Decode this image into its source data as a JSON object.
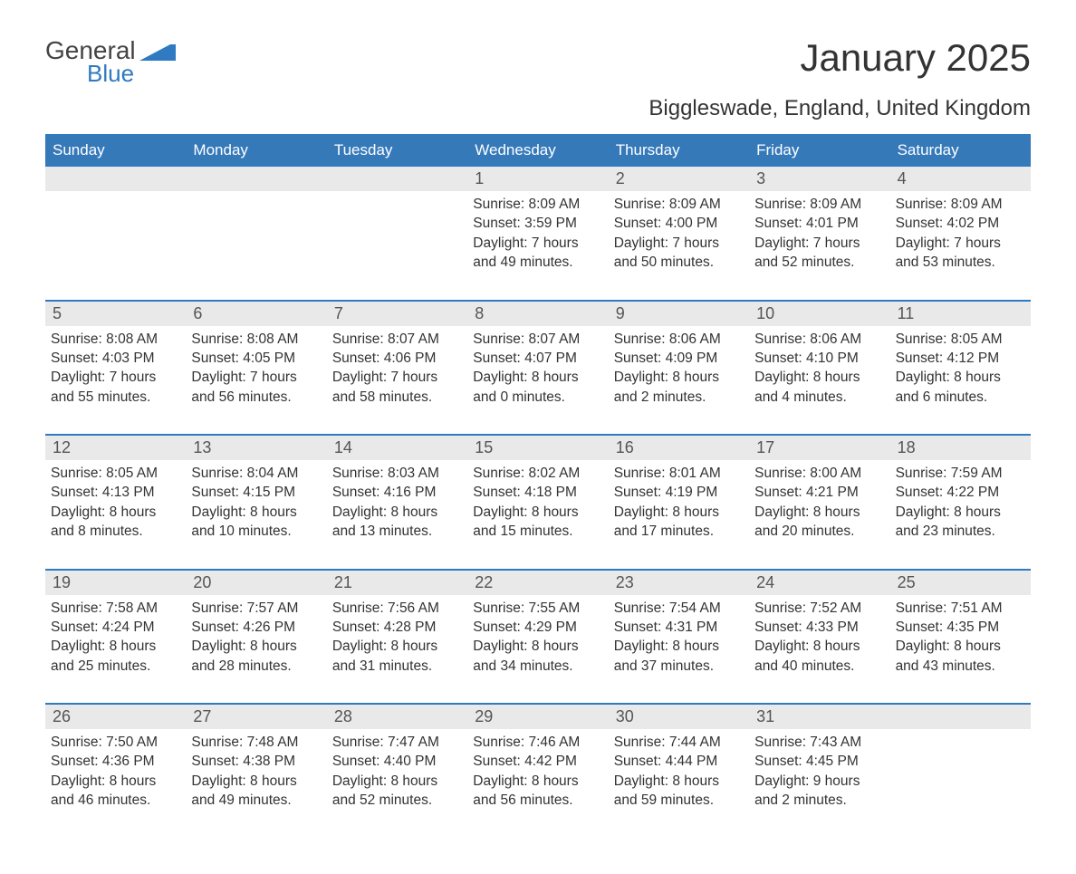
{
  "brand": {
    "word1": "General",
    "word2": "Blue"
  },
  "title": "January 2025",
  "location": "Biggleswade, England, United Kingdom",
  "colors": {
    "accent": "#2f7ac0",
    "header_bg": "#3579b9",
    "dayhead_bg": "#e9e9e9"
  },
  "weekdays": [
    "Sunday",
    "Monday",
    "Tuesday",
    "Wednesday",
    "Thursday",
    "Friday",
    "Saturday"
  ],
  "weeks": [
    [
      {
        "n": "",
        "sunrise": "",
        "sunset": "",
        "daylight": ""
      },
      {
        "n": "",
        "sunrise": "",
        "sunset": "",
        "daylight": ""
      },
      {
        "n": "",
        "sunrise": "",
        "sunset": "",
        "daylight": ""
      },
      {
        "n": "1",
        "sunrise": "Sunrise: 8:09 AM",
        "sunset": "Sunset: 3:59 PM",
        "daylight": "Daylight: 7 hours and 49 minutes."
      },
      {
        "n": "2",
        "sunrise": "Sunrise: 8:09 AM",
        "sunset": "Sunset: 4:00 PM",
        "daylight": "Daylight: 7 hours and 50 minutes."
      },
      {
        "n": "3",
        "sunrise": "Sunrise: 8:09 AM",
        "sunset": "Sunset: 4:01 PM",
        "daylight": "Daylight: 7 hours and 52 minutes."
      },
      {
        "n": "4",
        "sunrise": "Sunrise: 8:09 AM",
        "sunset": "Sunset: 4:02 PM",
        "daylight": "Daylight: 7 hours and 53 minutes."
      }
    ],
    [
      {
        "n": "5",
        "sunrise": "Sunrise: 8:08 AM",
        "sunset": "Sunset: 4:03 PM",
        "daylight": "Daylight: 7 hours and 55 minutes."
      },
      {
        "n": "6",
        "sunrise": "Sunrise: 8:08 AM",
        "sunset": "Sunset: 4:05 PM",
        "daylight": "Daylight: 7 hours and 56 minutes."
      },
      {
        "n": "7",
        "sunrise": "Sunrise: 8:07 AM",
        "sunset": "Sunset: 4:06 PM",
        "daylight": "Daylight: 7 hours and 58 minutes."
      },
      {
        "n": "8",
        "sunrise": "Sunrise: 8:07 AM",
        "sunset": "Sunset: 4:07 PM",
        "daylight": "Daylight: 8 hours and 0 minutes."
      },
      {
        "n": "9",
        "sunrise": "Sunrise: 8:06 AM",
        "sunset": "Sunset: 4:09 PM",
        "daylight": "Daylight: 8 hours and 2 minutes."
      },
      {
        "n": "10",
        "sunrise": "Sunrise: 8:06 AM",
        "sunset": "Sunset: 4:10 PM",
        "daylight": "Daylight: 8 hours and 4 minutes."
      },
      {
        "n": "11",
        "sunrise": "Sunrise: 8:05 AM",
        "sunset": "Sunset: 4:12 PM",
        "daylight": "Daylight: 8 hours and 6 minutes."
      }
    ],
    [
      {
        "n": "12",
        "sunrise": "Sunrise: 8:05 AM",
        "sunset": "Sunset: 4:13 PM",
        "daylight": "Daylight: 8 hours and 8 minutes."
      },
      {
        "n": "13",
        "sunrise": "Sunrise: 8:04 AM",
        "sunset": "Sunset: 4:15 PM",
        "daylight": "Daylight: 8 hours and 10 minutes."
      },
      {
        "n": "14",
        "sunrise": "Sunrise: 8:03 AM",
        "sunset": "Sunset: 4:16 PM",
        "daylight": "Daylight: 8 hours and 13 minutes."
      },
      {
        "n": "15",
        "sunrise": "Sunrise: 8:02 AM",
        "sunset": "Sunset: 4:18 PM",
        "daylight": "Daylight: 8 hours and 15 minutes."
      },
      {
        "n": "16",
        "sunrise": "Sunrise: 8:01 AM",
        "sunset": "Sunset: 4:19 PM",
        "daylight": "Daylight: 8 hours and 17 minutes."
      },
      {
        "n": "17",
        "sunrise": "Sunrise: 8:00 AM",
        "sunset": "Sunset: 4:21 PM",
        "daylight": "Daylight: 8 hours and 20 minutes."
      },
      {
        "n": "18",
        "sunrise": "Sunrise: 7:59 AM",
        "sunset": "Sunset: 4:22 PM",
        "daylight": "Daylight: 8 hours and 23 minutes."
      }
    ],
    [
      {
        "n": "19",
        "sunrise": "Sunrise: 7:58 AM",
        "sunset": "Sunset: 4:24 PM",
        "daylight": "Daylight: 8 hours and 25 minutes."
      },
      {
        "n": "20",
        "sunrise": "Sunrise: 7:57 AM",
        "sunset": "Sunset: 4:26 PM",
        "daylight": "Daylight: 8 hours and 28 minutes."
      },
      {
        "n": "21",
        "sunrise": "Sunrise: 7:56 AM",
        "sunset": "Sunset: 4:28 PM",
        "daylight": "Daylight: 8 hours and 31 minutes."
      },
      {
        "n": "22",
        "sunrise": "Sunrise: 7:55 AM",
        "sunset": "Sunset: 4:29 PM",
        "daylight": "Daylight: 8 hours and 34 minutes."
      },
      {
        "n": "23",
        "sunrise": "Sunrise: 7:54 AM",
        "sunset": "Sunset: 4:31 PM",
        "daylight": "Daylight: 8 hours and 37 minutes."
      },
      {
        "n": "24",
        "sunrise": "Sunrise: 7:52 AM",
        "sunset": "Sunset: 4:33 PM",
        "daylight": "Daylight: 8 hours and 40 minutes."
      },
      {
        "n": "25",
        "sunrise": "Sunrise: 7:51 AM",
        "sunset": "Sunset: 4:35 PM",
        "daylight": "Daylight: 8 hours and 43 minutes."
      }
    ],
    [
      {
        "n": "26",
        "sunrise": "Sunrise: 7:50 AM",
        "sunset": "Sunset: 4:36 PM",
        "daylight": "Daylight: 8 hours and 46 minutes."
      },
      {
        "n": "27",
        "sunrise": "Sunrise: 7:48 AM",
        "sunset": "Sunset: 4:38 PM",
        "daylight": "Daylight: 8 hours and 49 minutes."
      },
      {
        "n": "28",
        "sunrise": "Sunrise: 7:47 AM",
        "sunset": "Sunset: 4:40 PM",
        "daylight": "Daylight: 8 hours and 52 minutes."
      },
      {
        "n": "29",
        "sunrise": "Sunrise: 7:46 AM",
        "sunset": "Sunset: 4:42 PM",
        "daylight": "Daylight: 8 hours and 56 minutes."
      },
      {
        "n": "30",
        "sunrise": "Sunrise: 7:44 AM",
        "sunset": "Sunset: 4:44 PM",
        "daylight": "Daylight: 8 hours and 59 minutes."
      },
      {
        "n": "31",
        "sunrise": "Sunrise: 7:43 AM",
        "sunset": "Sunset: 4:45 PM",
        "daylight": "Daylight: 9 hours and 2 minutes."
      },
      {
        "n": "",
        "sunrise": "",
        "sunset": "",
        "daylight": ""
      }
    ]
  ]
}
